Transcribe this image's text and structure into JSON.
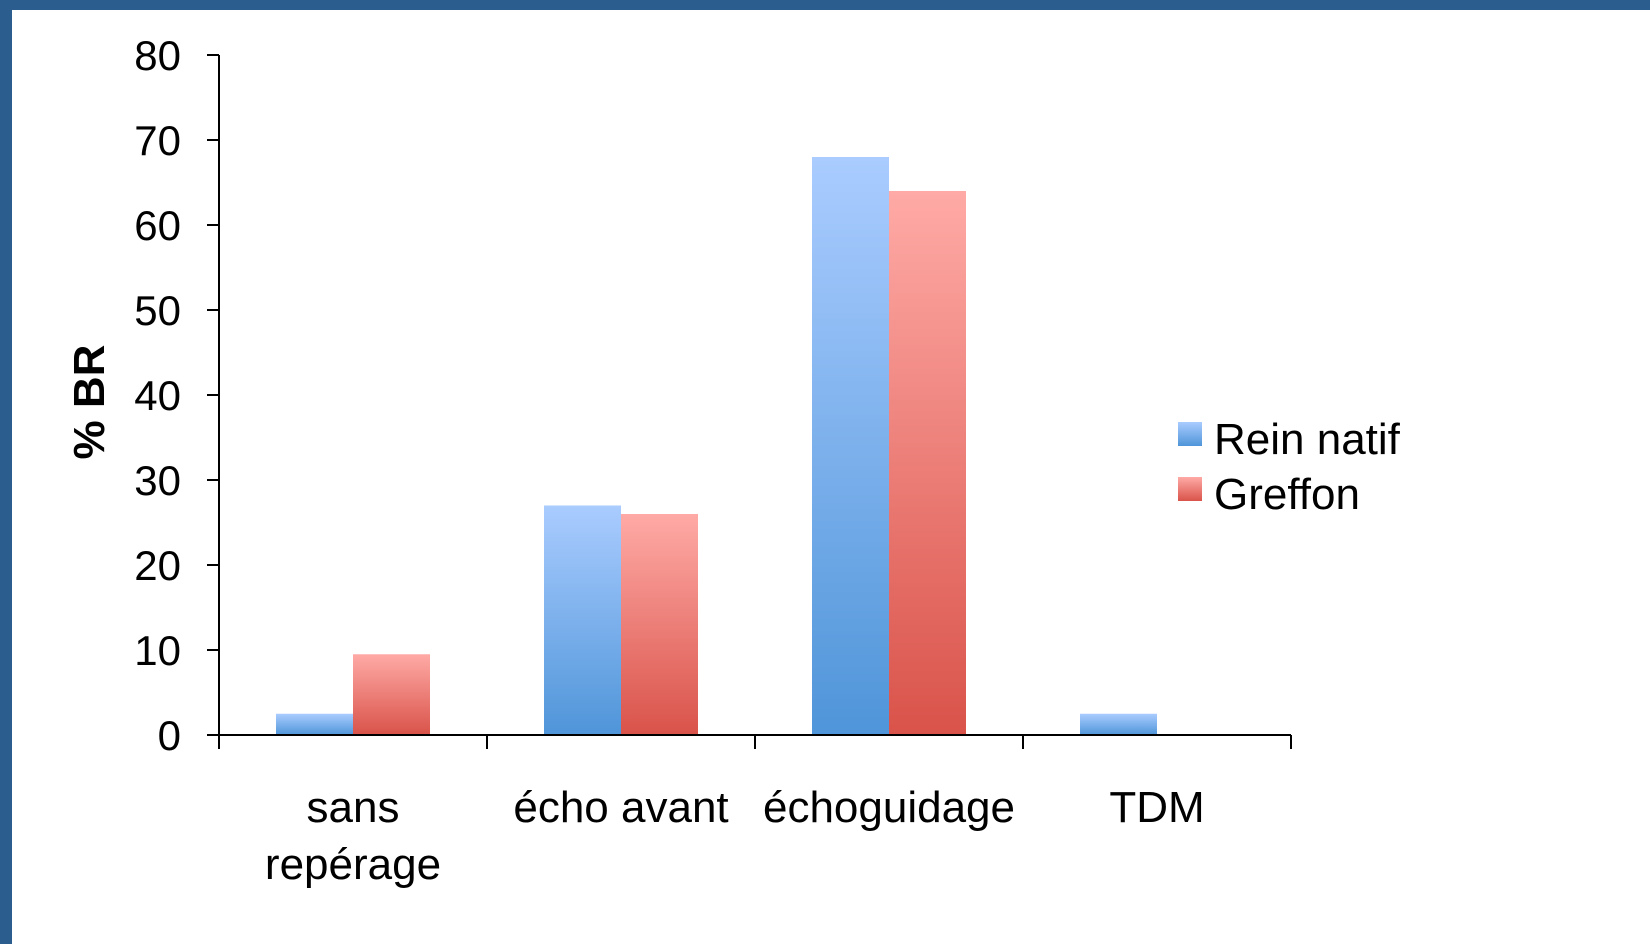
{
  "chart_data": {
    "type": "bar",
    "categories": [
      [
        "sans",
        "repérage"
      ],
      [
        "écho avant"
      ],
      [
        "échoguidage"
      ],
      [
        "TDM"
      ]
    ],
    "series": [
      {
        "name": "Rein natif",
        "values": [
          2.5,
          27,
          68,
          2.5
        ],
        "color_top": "#aaccff",
        "color_bottom": "#4f95d9"
      },
      {
        "name": "Greffon",
        "values": [
          9.5,
          26,
          64,
          0
        ],
        "color_top": "#ffaaa6",
        "color_bottom": "#d9534a"
      }
    ],
    "ylabel": "% BR",
    "xlabel": "",
    "ylim": [
      0,
      80
    ],
    "yticks": [
      0,
      10,
      20,
      30,
      40,
      50,
      60,
      70,
      80
    ],
    "grid": false,
    "legend_position": "right"
  }
}
